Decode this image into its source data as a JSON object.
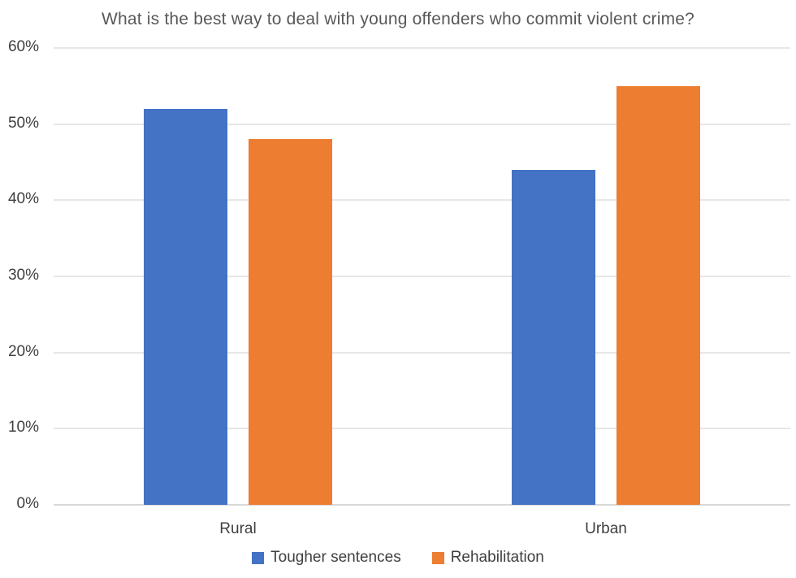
{
  "chart_data": {
    "type": "bar",
    "title": "What is the best way to deal with young offenders who commit violent crime?",
    "categories": [
      "Rural",
      "Urban"
    ],
    "series": [
      {
        "name": "Tougher sentences",
        "color": "#4472C4",
        "values": [
          52,
          44
        ]
      },
      {
        "name": "Rehabilitation",
        "color": "#ED7D31",
        "values": [
          48,
          55
        ]
      }
    ],
    "xlabel": "",
    "ylabel": "",
    "ylim": [
      0,
      60
    ],
    "ytick_step": 10,
    "ytick_labels": [
      "0%",
      "10%",
      "20%",
      "30%",
      "40%",
      "50%",
      "60%"
    ],
    "grid": true,
    "legend_position": "bottom",
    "colors": {
      "background": "#ffffff",
      "grid": "#e7e7e7",
      "axis_line": "#d9d9d9",
      "title_text": "#595959",
      "tick_text": "#404040",
      "legend_text": "#404040"
    }
  }
}
